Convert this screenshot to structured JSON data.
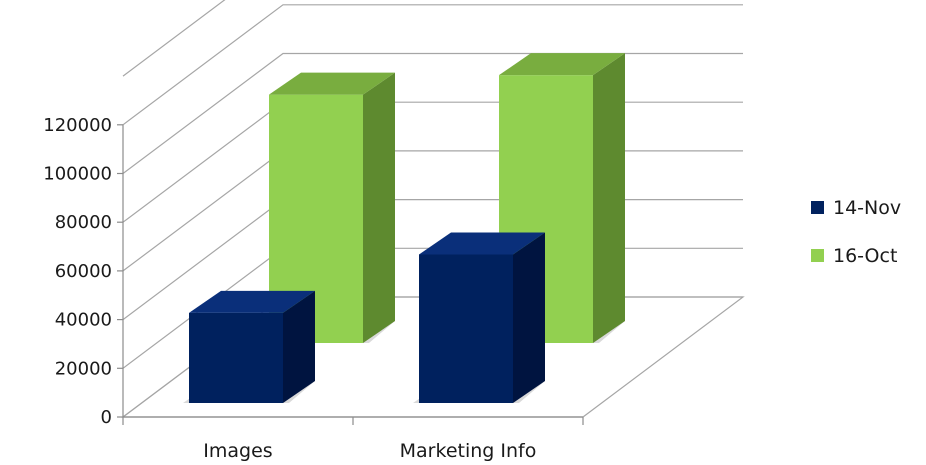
{
  "chart_data": {
    "type": "bar",
    "style": "3d-clustered-column",
    "categories": [
      "Images",
      "Marketing Info"
    ],
    "series": [
      {
        "name": "14-Nov",
        "values": [
          37000,
          61000
        ],
        "color": "#00215e",
        "side_color": "#001440",
        "top_color": "#0a2f7a"
      },
      {
        "name": "16-Oct",
        "values": [
          102000,
          110000
        ],
        "color": "#92d050",
        "side_color": "#5e8a2f",
        "top_color": "#79ad3f"
      }
    ],
    "y_ticks": [
      "0",
      "20000",
      "40000",
      "60000",
      "80000",
      "100000",
      "120000"
    ],
    "ylim": [
      0,
      140000
    ],
    "grid": true,
    "legend_position": "right",
    "title": "",
    "xlabel": "",
    "ylabel": ""
  }
}
